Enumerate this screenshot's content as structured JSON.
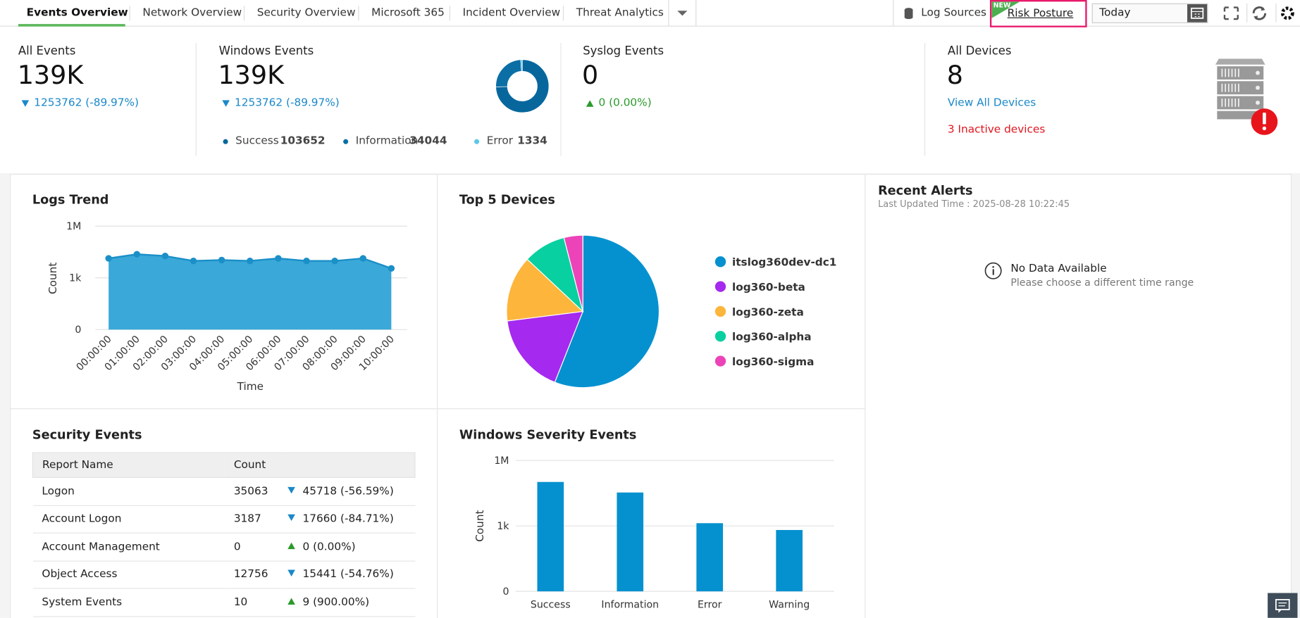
{
  "tabs": [
    "Events Overview",
    "Network Overview",
    "Security Overview",
    "Microsoft 365",
    "Incident Overview",
    "Threat Analytics"
  ],
  "toolbar": {
    "log_sources": "Log Sources",
    "new_badge": "NEW",
    "risk_posture": "Risk Posture",
    "date_range": "Today"
  },
  "summary": [
    {
      "title": "All Events",
      "value": "139K",
      "change": "1253762 (-89.97%)",
      "direction": "down"
    },
    {
      "title": "Windows Events",
      "value": "139K",
      "change": "1253762 (-89.97%)",
      "direction": "down"
    },
    {
      "title": "Syslog Events",
      "value": "0",
      "change": "0 (0.00%)",
      "direction": "up"
    }
  ],
  "windows_breakdown": {
    "type": "donut",
    "categories": [
      "Success",
      "Information",
      "Error"
    ],
    "values": [
      103652,
      34044,
      1334
    ],
    "colors": [
      "#07679d",
      "#0b6fa6",
      "#5bc8e8"
    ]
  },
  "all_devices": {
    "title": "All Devices",
    "value": "8",
    "link": "View All Devices",
    "inactive": "3 Inactive devices"
  },
  "logs_trend": {
    "type": "area",
    "title": "Logs Trend",
    "x_label": "Time",
    "y_label": "Count",
    "categories": [
      "00:00:00",
      "01:00:00",
      "02:00:00",
      "03:00:00",
      "04:00:00",
      "05:00:00",
      "06:00:00",
      "07:00:00",
      "08:00:00",
      "09:00:00",
      "10:00:00"
    ],
    "values": [
      13500,
      23400,
      18600,
      9600,
      10800,
      9600,
      13500,
      9600,
      9600,
      13500,
      3550
    ],
    "ylim": [
      0,
      1000000
    ],
    "yticks": [
      0,
      {
        "value": 1000,
        "label": "1k"
      },
      {
        "value": 1000000,
        "label": "1M"
      }
    ],
    "log_scale": true,
    "grid": true,
    "color": "#3aa8d8",
    "line_color": "#1a8fc8"
  },
  "top_devices": {
    "type": "pie",
    "title": "Top 5 Devices",
    "categories": [
      "itslog360dev-dc1",
      "log360-beta",
      "log360-zeta",
      "log360-alpha",
      "log360-sigma"
    ],
    "values": [
      56,
      17,
      14,
      9,
      4
    ],
    "colors": [
      "#0591cf",
      "#a529ee",
      "#fdb53c",
      "#08d0a0",
      "#ec43b8"
    ]
  },
  "recent_alerts": {
    "title": "Recent Alerts",
    "last_updated": "Last Updated Time : 2025-08-28 10:22:45",
    "no_data": "No Data Available",
    "hint": "Please choose a different time range"
  },
  "security_events": {
    "title": "Security Events",
    "columns": [
      "Report Name",
      "Count"
    ],
    "rows": [
      {
        "name": "Logon",
        "count": 35063,
        "change": "45718 (-56.59%)",
        "direction": "down"
      },
      {
        "name": "Account Logon",
        "count": 3187,
        "change": "17660 (-84.71%)",
        "direction": "down"
      },
      {
        "name": "Account Management",
        "count": 0,
        "change": "0 (0.00%)",
        "direction": "up"
      },
      {
        "name": "Object Access",
        "count": 12756,
        "change": "15441 (-54.76%)",
        "direction": "down"
      },
      {
        "name": "System Events",
        "count": 10,
        "change": "9 (900.00%)",
        "direction": "up"
      }
    ]
  },
  "windows_severity": {
    "type": "bar",
    "title": "Windows Severity Events",
    "y_label": "Count",
    "categories": [
      "Success",
      "Information",
      "Error",
      "Warning"
    ],
    "values": [
      103652,
      34044,
      1334,
      650
    ],
    "ylim": [
      0,
      1000000
    ],
    "yticks": [
      0,
      {
        "value": 1000,
        "label": "1k"
      },
      {
        "value": 1000000,
        "label": "1M"
      }
    ],
    "log_scale": true,
    "grid": true,
    "color": "#0591cf"
  }
}
